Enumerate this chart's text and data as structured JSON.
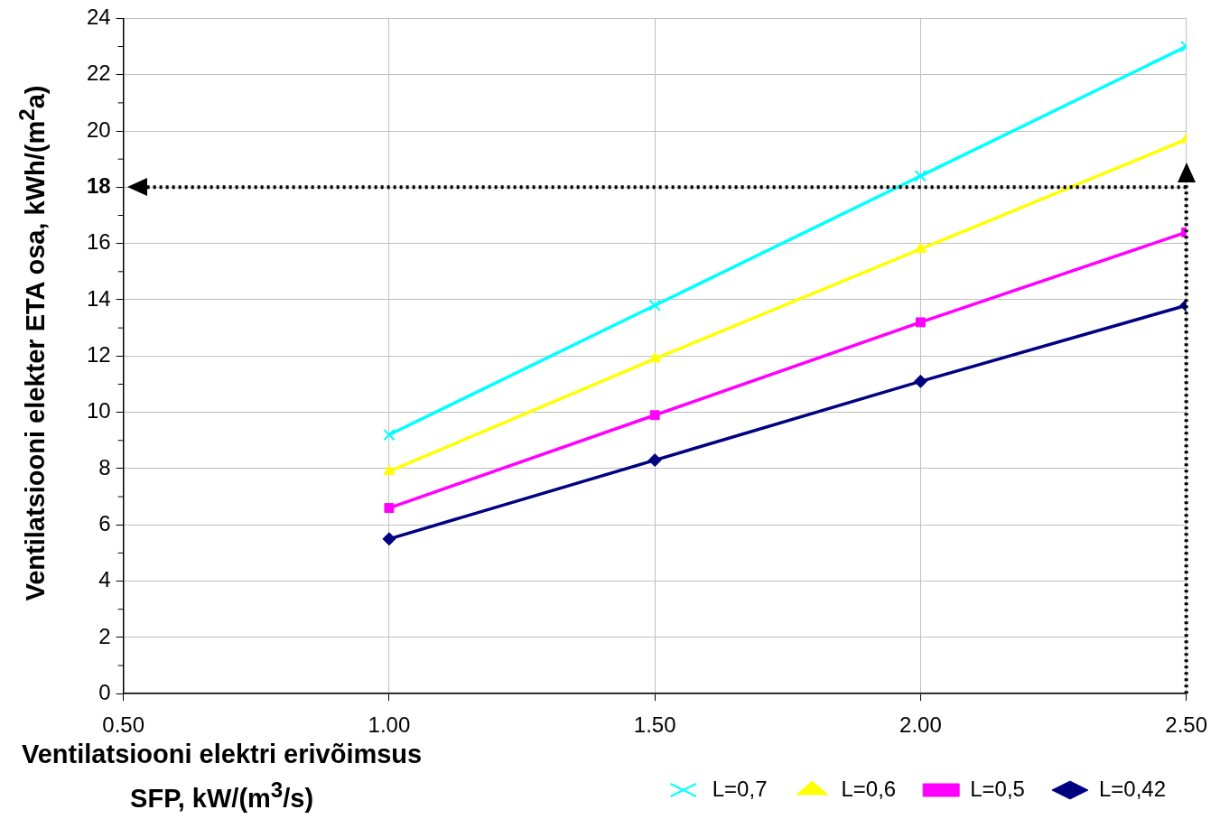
{
  "chart_data": {
    "type": "line",
    "xlabel": "Ventilatsiooni elektri erivõimsus\nSFP, kW/(m$^{3}$/s)",
    "ylabel": "Ventilatsiooni elekter ETA osa, kWh/(m$^{2}$a)",
    "x": [
      1.0,
      1.5,
      2.0,
      2.5
    ],
    "series": [
      {
        "name": "L=0,7",
        "color": "#00ffff",
        "marker": "cross",
        "values": [
          9.2,
          13.8,
          18.4,
          23.0
        ]
      },
      {
        "name": "L=0,6",
        "color": "#ffff00",
        "marker": "triangle",
        "values": [
          7.9,
          11.9,
          15.8,
          19.7
        ]
      },
      {
        "name": "L=0,5",
        "color": "#ff00ff",
        "marker": "square",
        "values": [
          6.6,
          9.9,
          13.2,
          16.4
        ]
      },
      {
        "name": "L=0,42",
        "color": "#000080",
        "marker": "diamond",
        "values": [
          5.5,
          8.3,
          11.1,
          13.8
        ]
      }
    ],
    "xlim": [
      0.5,
      2.5
    ],
    "xticks": [
      {
        "value": 0.5,
        "label": "0.50"
      },
      {
        "value": 1.0,
        "label": "1.00"
      },
      {
        "value": 1.5,
        "label": "1.50"
      },
      {
        "value": 2.0,
        "label": "2.00"
      },
      {
        "value": 2.5,
        "label": "2.50"
      }
    ],
    "ylim": [
      0,
      24
    ],
    "yticks": [
      0,
      2,
      4,
      6,
      8,
      10,
      12,
      14,
      16,
      18,
      20,
      22,
      24
    ],
    "ref_lines": [
      {
        "axis": "y",
        "value": 18,
        "color": "#000000",
        "line_style": "dotted"
      },
      {
        "axis": "x",
        "value": 2.5,
        "color": "#000000",
        "line_style": "dotted"
      }
    ],
    "grid": true,
    "legend": "bottom right",
    "line_style": "solid"
  }
}
